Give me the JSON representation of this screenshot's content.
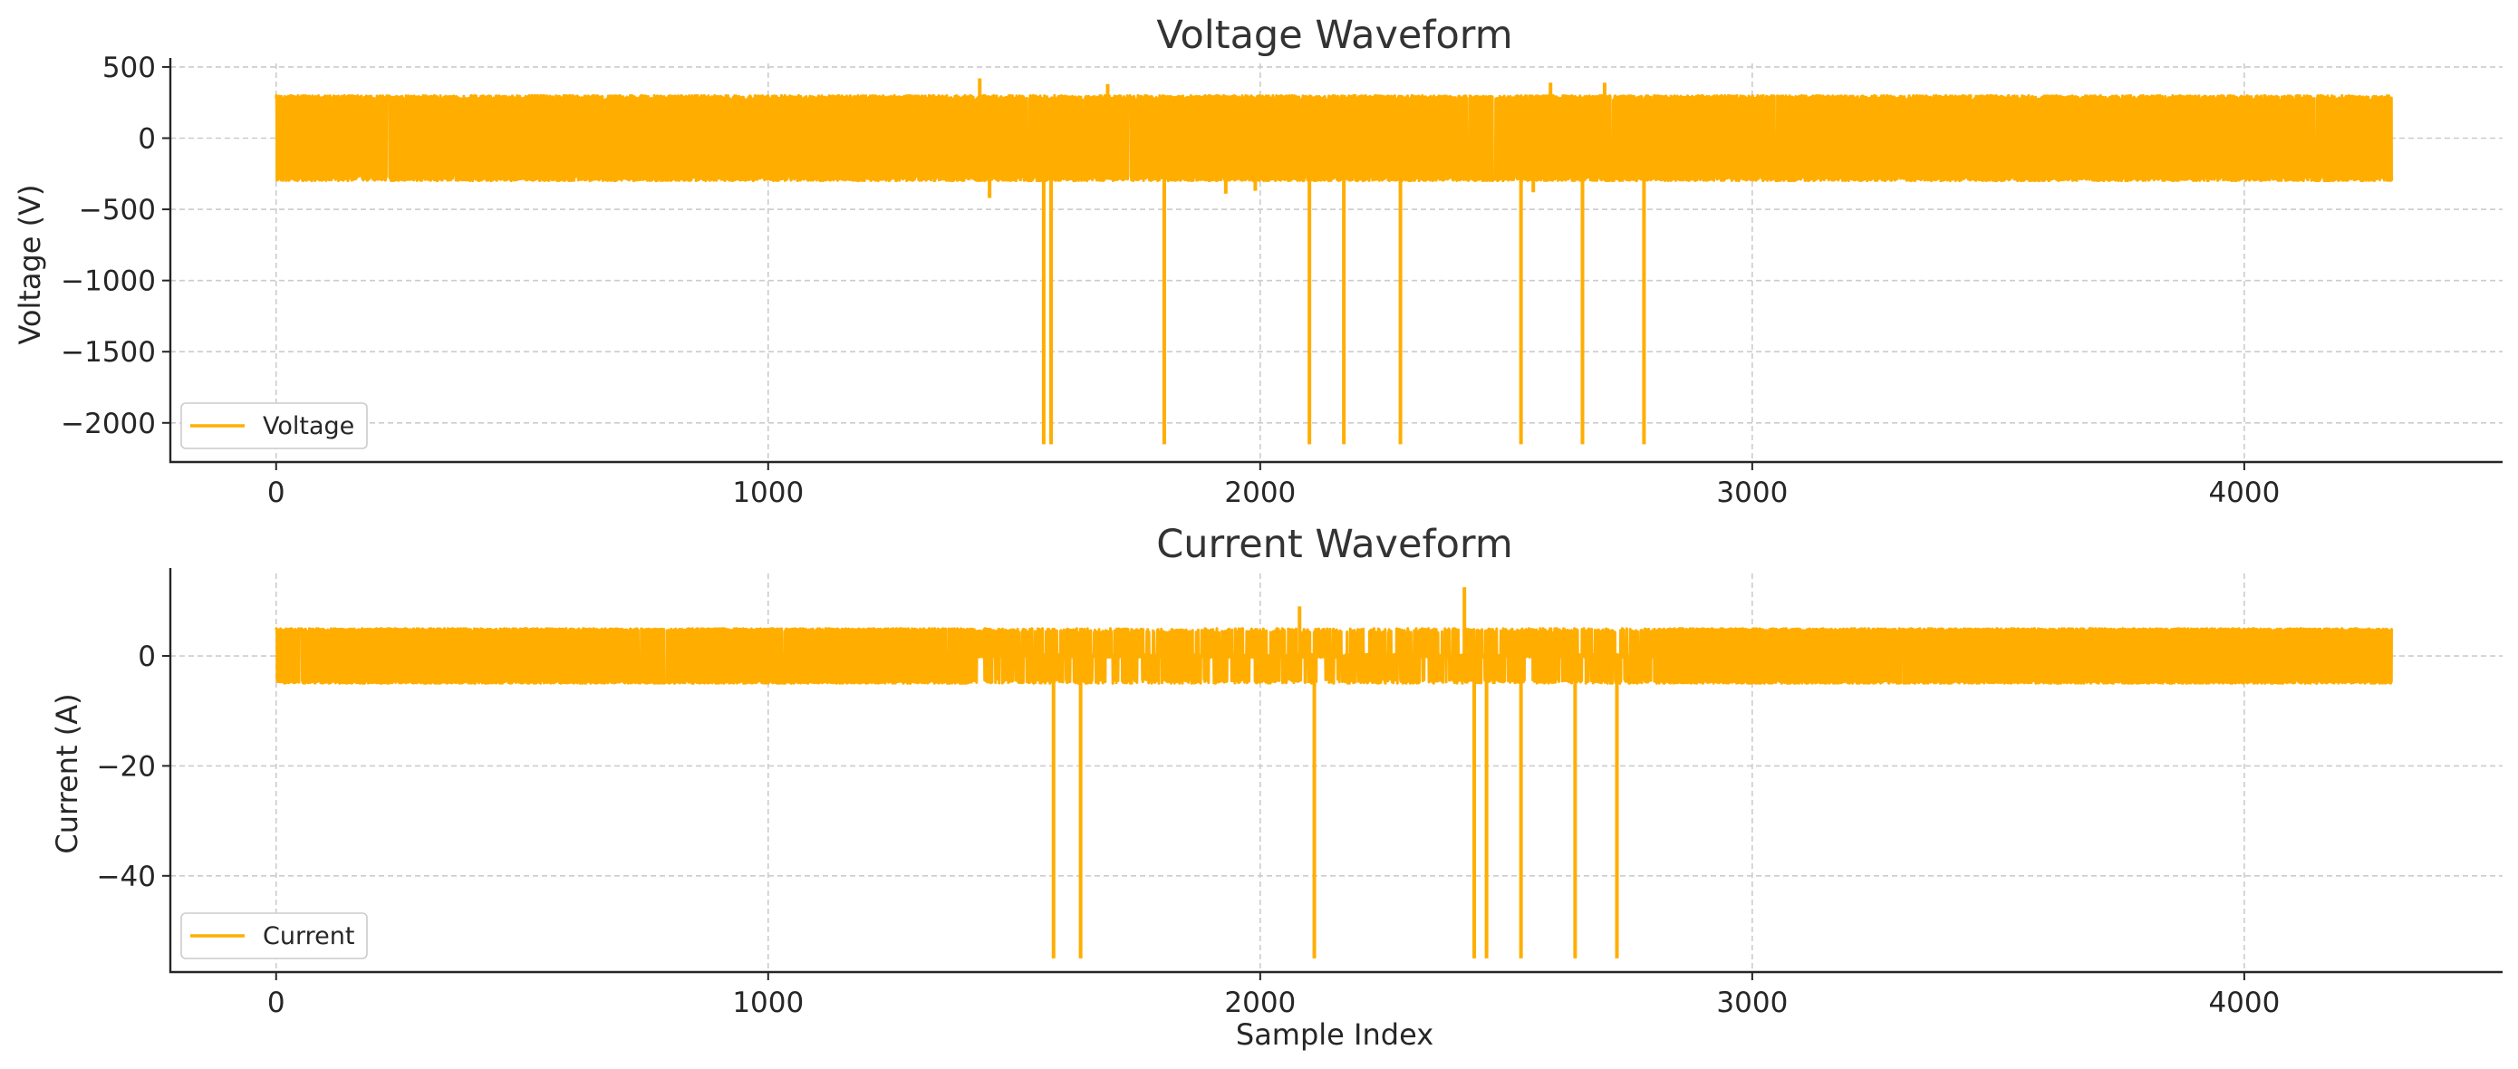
{
  "colors": {
    "series": "#FFAE00",
    "grid": "#cccccc",
    "axis": "#262626",
    "title": "#333333"
  },
  "chart_data": [
    {
      "type": "line",
      "title": "Voltage Waveform",
      "xlabel": "",
      "ylabel": "Voltage (V)",
      "xlim": [
        -215,
        4525
      ],
      "ylim": [
        -2275,
        525
      ],
      "xticks": [
        0,
        1000,
        2000,
        3000,
        4000
      ],
      "xtick_labels": [
        "0",
        "1000",
        "2000",
        "3000",
        "4000"
      ],
      "yticks": [
        500,
        0,
        -500,
        -1000,
        -1500,
        -2000
      ],
      "ytick_labels": [
        "500",
        "0",
        "−500",
        "−1000",
        "−1500",
        "−2000"
      ],
      "grid": true,
      "legend": {
        "position": "lower-left",
        "entries": [
          "Voltage"
        ]
      },
      "series": [
        {
          "name": "Voltage",
          "color": "#FFAE00",
          "x_range": [
            0,
            4300
          ],
          "band": [
            -300,
            300
          ],
          "spikes_down": [
            {
              "x": 1560,
              "y": -2150
            },
            {
              "x": 1575,
              "y": -2150
            },
            {
              "x": 1805,
              "y": -2150
            },
            {
              "x": 2100,
              "y": -2150
            },
            {
              "x": 2170,
              "y": -2150
            },
            {
              "x": 2285,
              "y": -2150
            },
            {
              "x": 2530,
              "y": -2150
            },
            {
              "x": 2655,
              "y": -2150
            },
            {
              "x": 2780,
              "y": -2150
            }
          ],
          "spikes_up": [
            {
              "x": 1430,
              "y": 420
            },
            {
              "x": 1690,
              "y": 380
            },
            {
              "x": 2590,
              "y": 390
            },
            {
              "x": 2700,
              "y": 390
            }
          ],
          "minor_dips": [
            {
              "x": 1450,
              "y": -420
            },
            {
              "x": 1930,
              "y": -390
            },
            {
              "x": 1990,
              "y": -370
            },
            {
              "x": 2555,
              "y": -380
            }
          ]
        }
      ]
    },
    {
      "type": "line",
      "title": "Current Waveform",
      "xlabel": "Sample Index",
      "ylabel": "Current (A)",
      "xlim": [
        -215,
        4525
      ],
      "ylim": [
        -57.5,
        15
      ],
      "xticks": [
        0,
        1000,
        2000,
        3000,
        4000
      ],
      "xtick_labels": [
        "0",
        "1000",
        "2000",
        "3000",
        "4000"
      ],
      "yticks": [
        0,
        -20,
        -40
      ],
      "ytick_labels": [
        "0",
        "−20",
        "−40"
      ],
      "grid": true,
      "legend": {
        "position": "lower-left",
        "entries": [
          "Current"
        ]
      },
      "series": [
        {
          "name": "Current",
          "color": "#FFAE00",
          "x_range": [
            0,
            4300
          ],
          "band": [
            -5,
            5
          ],
          "sparse_region": [
            1410,
            2800
          ],
          "spikes_down": [
            {
              "x": 1580,
              "y": -55
            },
            {
              "x": 1635,
              "y": -55
            },
            {
              "x": 2110,
              "y": -55
            },
            {
              "x": 2435,
              "y": -55
            },
            {
              "x": 2460,
              "y": -55
            },
            {
              "x": 2530,
              "y": -55
            },
            {
              "x": 2640,
              "y": -55
            },
            {
              "x": 2725,
              "y": -55
            }
          ],
          "spikes_up": [
            {
              "x": 2080,
              "y": 9
            },
            {
              "x": 2415,
              "y": 12.5
            }
          ]
        }
      ]
    }
  ]
}
